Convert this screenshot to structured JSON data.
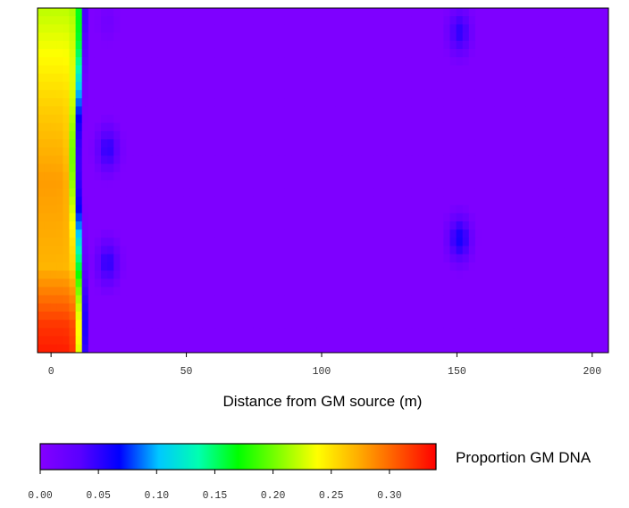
{
  "chart_data": {
    "type": "heatmap",
    "title": "",
    "xlabel": "Distance from GM source (m)",
    "ylabel": "",
    "xlim": [
      -5,
      206
    ],
    "x_ticks": [
      0,
      50,
      100,
      150,
      200
    ],
    "y_axis_labels_shown": false,
    "colorbar": {
      "label": "Proportion GM DNA",
      "range": [
        0.0,
        0.34
      ],
      "ticks": [
        0.0,
        0.05,
        0.1,
        0.15,
        0.2,
        0.25,
        0.3
      ],
      "tick_labels": [
        "0.00",
        "0.05",
        "0.10",
        "0.15",
        "0.20",
        "0.25",
        "0.30"
      ],
      "colors": [
        "#8400ff",
        "#5a00ff",
        "#0000ff",
        "#00c8ff",
        "#00ffb0",
        "#00ff00",
        "#7fff00",
        "#ffff00",
        "#ffb000",
        "#ff5a00",
        "#ff0000"
      ]
    },
    "background_value": 0.005,
    "source_band": {
      "x_range": [
        -3,
        10
      ],
      "values_by_height": [
        {
          "y_frac": 0.0,
          "value": 0.22
        },
        {
          "y_frac": 0.3,
          "value": 0.26
        },
        {
          "y_frac": 0.5,
          "value": 0.28
        },
        {
          "y_frac": 0.75,
          "value": 0.27
        },
        {
          "y_frac": 0.92,
          "value": 0.32
        },
        {
          "y_frac": 1.0,
          "value": 0.33
        }
      ]
    },
    "hotspots": [
      {
        "x": 21,
        "y_frac": 0.04,
        "value": 0.015
      },
      {
        "x": 21,
        "y_frac": 0.41,
        "value": 0.05
      },
      {
        "x": 21,
        "y_frac": 0.74,
        "value": 0.05
      },
      {
        "x": 151,
        "y_frac": 0.07,
        "value": 0.05
      },
      {
        "x": 151,
        "y_frac": 0.67,
        "value": 0.06
      }
    ]
  }
}
